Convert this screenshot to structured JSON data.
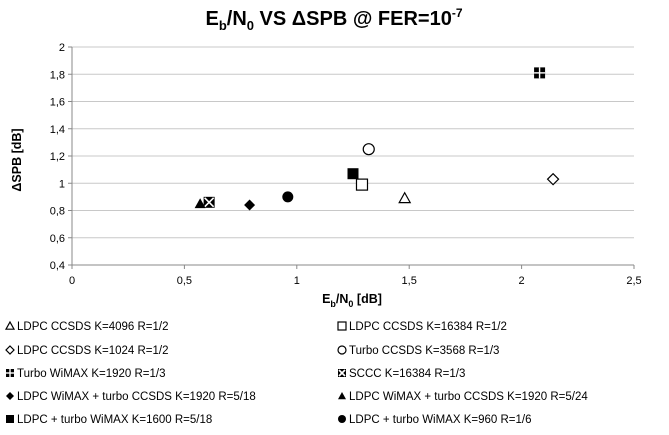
{
  "chart_data": {
    "type": "scatter",
    "title": {
      "main": "E",
      "sub1": "b",
      "mid": "/N",
      "sub2": "0",
      "tail": " VS ΔSPB @ FER=10",
      "sup": "-7"
    },
    "xlabel": {
      "main": "E",
      "sub1": "b",
      "mid": "/N",
      "sub2": "0",
      "tail": " [dB]"
    },
    "ylabel": "ΔSPB [dB]",
    "xlim": [
      0,
      2.5
    ],
    "ylim": [
      0.4,
      2
    ],
    "xticks": [
      {
        "value": 0,
        "label": "0"
      },
      {
        "value": 0.5,
        "label": "0,5"
      },
      {
        "value": 1,
        "label": "1"
      },
      {
        "value": 1.5,
        "label": "1,5"
      },
      {
        "value": 2,
        "label": "2"
      },
      {
        "value": 2.5,
        "label": "2,5"
      }
    ],
    "yticks": [
      {
        "value": 0.4,
        "label": "0,4"
      },
      {
        "value": 0.6,
        "label": "0,6"
      },
      {
        "value": 0.8,
        "label": "0,8"
      },
      {
        "value": 1,
        "label": "1"
      },
      {
        "value": 1.2,
        "label": "1,2"
      },
      {
        "value": 1.4,
        "label": "1,4"
      },
      {
        "value": 1.6,
        "label": "1,6"
      },
      {
        "value": 1.8,
        "label": "1,8"
      },
      {
        "value": 2,
        "label": "2"
      }
    ],
    "grid": "horizontal",
    "legend_position": "bottom",
    "series": [
      {
        "name": "LDPC CCSDS K=4096 R=1/2",
        "marker": "triangle-open",
        "x": 1.48,
        "y": 0.89
      },
      {
        "name": "LDPC CCSDS K=16384 R=1/2",
        "marker": "square-open",
        "x": 1.29,
        "y": 0.99
      },
      {
        "name": "LDPC CCSDS K=1024 R=1/2",
        "marker": "diamond-open",
        "x": 2.14,
        "y": 1.03
      },
      {
        "name": "Turbo CCSDS K=3568 R=1/3",
        "marker": "circle-open",
        "x": 1.32,
        "y": 1.25
      },
      {
        "name": "Turbo WiMAX K=1920 R=1/3",
        "marker": "square-cross",
        "x": 2.08,
        "y": 1.81
      },
      {
        "name": "SCCC K=16384 R=1/3",
        "marker": "square-x",
        "x": 0.61,
        "y": 0.86
      },
      {
        "name": "LDPC WiMAX + turbo CCSDS K=1920 R=5/18",
        "marker": "diamond-filled",
        "x": 0.79,
        "y": 0.84
      },
      {
        "name": "LDPC WiMAX + turbo CCSDS K=1920 R=5/24",
        "marker": "triangle-filled",
        "x": 0.57,
        "y": 0.85
      },
      {
        "name": "LDPC + turbo WiMAX K=1600 R=5/18",
        "marker": "square-filled",
        "x": 1.25,
        "y": 1.07
      },
      {
        "name": "LDPC + turbo WiMAX K=960 R=1/6",
        "marker": "circle-filled",
        "x": 0.96,
        "y": 0.9
      }
    ]
  },
  "colors": {
    "axis": "#888888",
    "grid": "#c8c8c8",
    "marker": "#000000"
  }
}
